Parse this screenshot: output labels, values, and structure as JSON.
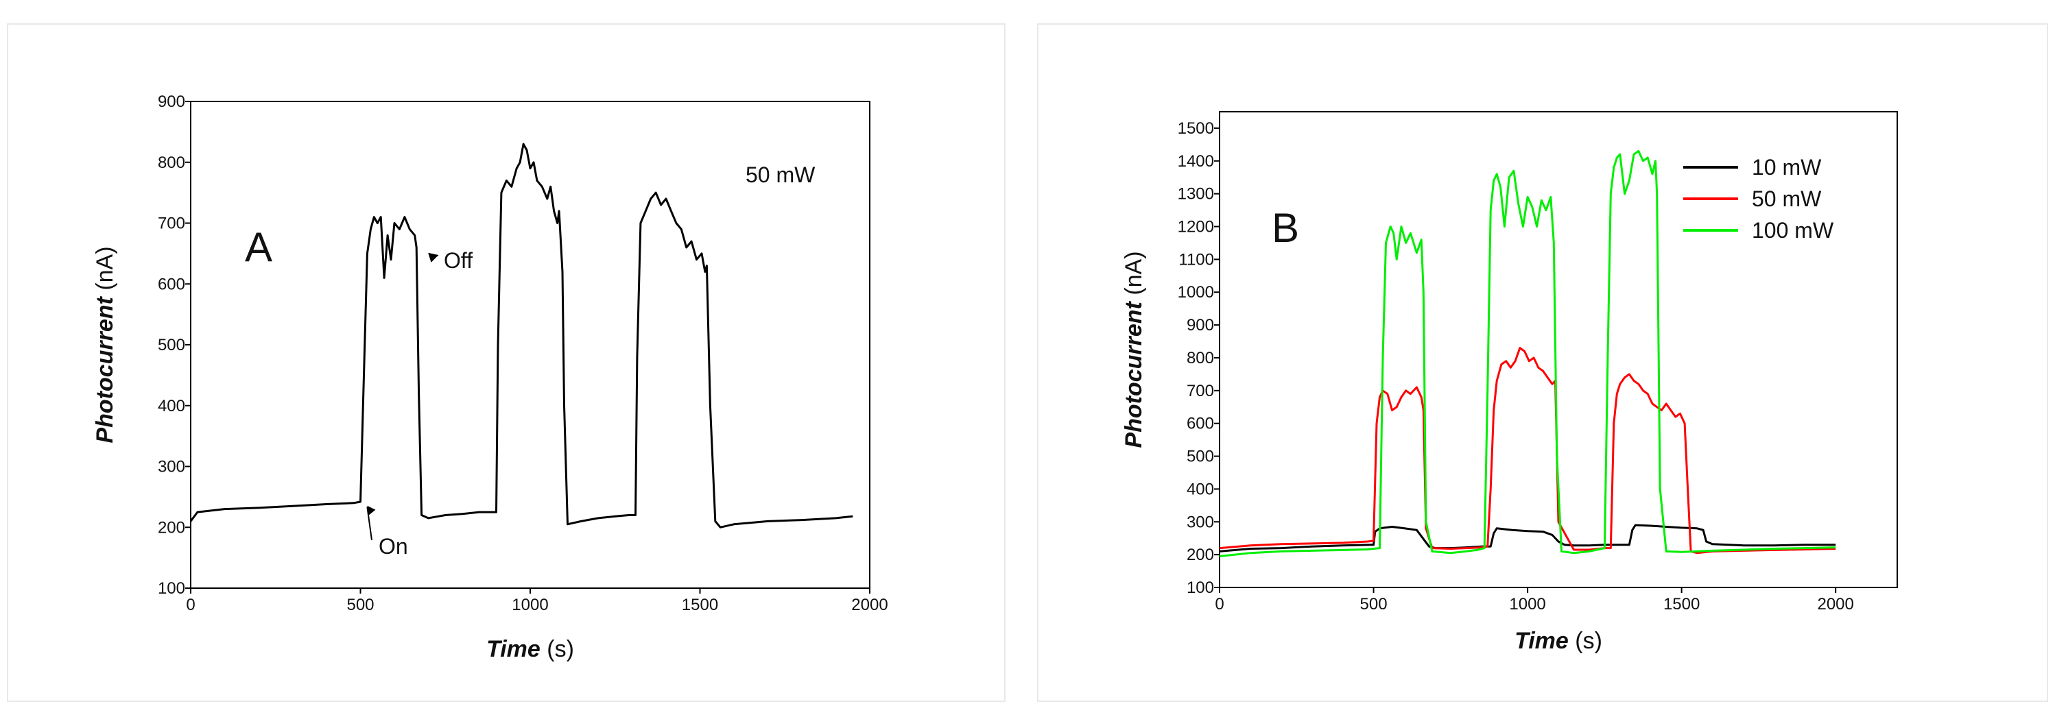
{
  "chart_data": [
    {
      "id": "A",
      "type": "line",
      "panel_label": "A",
      "annotation": "50 mW",
      "xlabel_main": "Time",
      "xlabel_unit": " (s)",
      "ylabel_main": "Photocurrent",
      "ylabel_unit": " (nA)",
      "xlim": [
        0,
        2000
      ],
      "ylim": [
        100,
        900
      ],
      "xticks": [
        0,
        500,
        1000,
        1500,
        2000
      ],
      "yticks": [
        100,
        200,
        300,
        400,
        500,
        600,
        700,
        800,
        900
      ],
      "on_label": "On",
      "off_label": "Off",
      "on_point": [
        520,
        240
      ],
      "off_point": [
        700,
        650
      ],
      "series": [
        {
          "name": "50 mW",
          "color": "#000000",
          "x": [
            0,
            20,
            100,
            200,
            300,
            400,
            480,
            500,
            510,
            520,
            530,
            540,
            550,
            560,
            570,
            580,
            590,
            600,
            615,
            630,
            645,
            660,
            665,
            672,
            680,
            700,
            750,
            800,
            850,
            890,
            900,
            905,
            915,
            930,
            945,
            960,
            970,
            980,
            990,
            1000,
            1010,
            1020,
            1035,
            1050,
            1060,
            1070,
            1080,
            1085,
            1095,
            1100,
            1110,
            1150,
            1200,
            1250,
            1290,
            1310,
            1315,
            1325,
            1340,
            1355,
            1370,
            1385,
            1400,
            1415,
            1430,
            1445,
            1460,
            1475,
            1490,
            1505,
            1515,
            1520,
            1530,
            1545,
            1560,
            1600,
            1700,
            1800,
            1900,
            1950
          ],
          "values": [
            210,
            225,
            230,
            232,
            235,
            238,
            240,
            242,
            450,
            650,
            690,
            710,
            700,
            710,
            610,
            680,
            640,
            700,
            690,
            710,
            690,
            680,
            660,
            420,
            220,
            215,
            220,
            222,
            225,
            225,
            225,
            500,
            750,
            770,
            760,
            790,
            800,
            830,
            820,
            790,
            800,
            770,
            760,
            740,
            760,
            720,
            700,
            720,
            620,
            400,
            205,
            210,
            215,
            218,
            220,
            220,
            480,
            700,
            720,
            740,
            750,
            730,
            740,
            720,
            700,
            690,
            660,
            670,
            640,
            650,
            620,
            630,
            400,
            210,
            200,
            205,
            210,
            212,
            215,
            218
          ]
        }
      ]
    },
    {
      "id": "B",
      "type": "line",
      "panel_label": "B",
      "xlabel_main": "Time",
      "xlabel_unit": " (s)",
      "ylabel_main": "Photocurrent",
      "ylabel_unit": " (nA)",
      "xlim": [
        0,
        2200
      ],
      "ylim": [
        100,
        1550
      ],
      "xticks": [
        0,
        500,
        1000,
        1500,
        2000
      ],
      "yticks": [
        100,
        200,
        300,
        400,
        500,
        600,
        700,
        800,
        900,
        1000,
        1100,
        1200,
        1300,
        1400,
        1500
      ],
      "legend_position": "top-right",
      "series": [
        {
          "name": "10 mW",
          "color": "#000000",
          "x": [
            0,
            100,
            200,
            300,
            400,
            490,
            500,
            505,
            520,
            560,
            600,
            640,
            660,
            680,
            700,
            750,
            800,
            850,
            880,
            890,
            900,
            950,
            1000,
            1050,
            1080,
            1100,
            1120,
            1150,
            1200,
            1250,
            1300,
            1330,
            1340,
            1350,
            1400,
            1450,
            1500,
            1550,
            1570,
            1580,
            1600,
            1700,
            1800,
            1900,
            2000
          ],
          "values": [
            210,
            218,
            220,
            225,
            228,
            230,
            230,
            270,
            280,
            285,
            280,
            275,
            250,
            225,
            220,
            220,
            222,
            225,
            225,
            265,
            280,
            275,
            272,
            270,
            260,
            240,
            230,
            228,
            228,
            230,
            230,
            230,
            275,
            290,
            288,
            285,
            282,
            280,
            275,
            240,
            232,
            228,
            228,
            230,
            230
          ]
        },
        {
          "name": "50 mW",
          "color": "#ff0000",
          "x": [
            0,
            100,
            200,
            300,
            400,
            480,
            500,
            510,
            520,
            530,
            545,
            560,
            575,
            590,
            605,
            620,
            640,
            655,
            662,
            670,
            690,
            750,
            800,
            850,
            870,
            880,
            890,
            900,
            915,
            930,
            945,
            960,
            975,
            990,
            1005,
            1020,
            1035,
            1050,
            1065,
            1080,
            1090,
            1100,
            1150,
            1200,
            1250,
            1270,
            1280,
            1290,
            1300,
            1315,
            1330,
            1345,
            1360,
            1375,
            1390,
            1405,
            1420,
            1435,
            1450,
            1465,
            1480,
            1495,
            1510,
            1520,
            1530,
            1550,
            1600,
            1700,
            1800,
            1900,
            2000
          ],
          "values": [
            220,
            228,
            232,
            234,
            236,
            240,
            242,
            600,
            680,
            700,
            690,
            640,
            650,
            680,
            700,
            690,
            710,
            680,
            640,
            280,
            220,
            218,
            220,
            222,
            225,
            400,
            640,
            730,
            780,
            790,
            770,
            790,
            830,
            820,
            790,
            800,
            770,
            760,
            740,
            720,
            730,
            300,
            215,
            215,
            220,
            220,
            600,
            690,
            720,
            740,
            750,
            730,
            720,
            700,
            690,
            660,
            650,
            640,
            660,
            640,
            620,
            630,
            600,
            400,
            210,
            205,
            210,
            212,
            214,
            216,
            218
          ]
        },
        {
          "name": "100 mW",
          "color": "#00ee00",
          "x": [
            0,
            100,
            200,
            300,
            400,
            480,
            500,
            520,
            530,
            540,
            555,
            565,
            575,
            590,
            605,
            620,
            640,
            655,
            662,
            670,
            690,
            750,
            800,
            840,
            860,
            870,
            880,
            890,
            900,
            912,
            925,
            940,
            955,
            970,
            985,
            1000,
            1015,
            1030,
            1045,
            1060,
            1075,
            1085,
            1095,
            1110,
            1150,
            1200,
            1250,
            1260,
            1270,
            1280,
            1290,
            1300,
            1315,
            1330,
            1345,
            1360,
            1375,
            1390,
            1405,
            1415,
            1420,
            1430,
            1450,
            1500,
            1550,
            1600,
            1700,
            1800,
            1900,
            2000
          ],
          "values": [
            195,
            205,
            210,
            212,
            214,
            216,
            218,
            220,
            800,
            1150,
            1200,
            1180,
            1100,
            1200,
            1150,
            1180,
            1120,
            1160,
            1000,
            300,
            210,
            205,
            210,
            215,
            220,
            700,
            1250,
            1340,
            1360,
            1320,
            1200,
            1350,
            1370,
            1270,
            1200,
            1290,
            1260,
            1200,
            1280,
            1250,
            1290,
            1150,
            500,
            210,
            205,
            210,
            220,
            800,
            1300,
            1380,
            1410,
            1420,
            1300,
            1340,
            1420,
            1430,
            1400,
            1410,
            1360,
            1400,
            1300,
            400,
            210,
            208,
            210,
            212,
            215,
            218,
            220,
            222
          ]
        }
      ]
    }
  ]
}
